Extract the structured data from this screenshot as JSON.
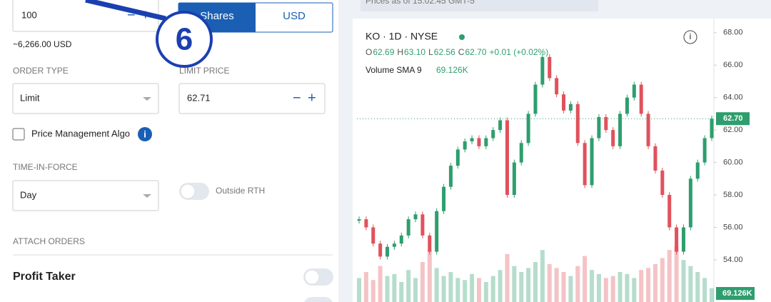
{
  "order_form": {
    "quantity": "100",
    "estimate": "~6,266.00 USD",
    "unit_options": [
      "Shares",
      "USD"
    ],
    "order_type_label": "ORDER TYPE",
    "order_type": "Limit",
    "limit_price_label": "LIMIT PRICE",
    "limit_price": "62.71",
    "algo_label": "Price Management Algo",
    "tif_label": "TIME-IN-FORCE",
    "tif": "Day",
    "outside_rth_label": "Outside RTH",
    "attach_label": "ATTACH ORDERS",
    "profit_taker_label": "Profit Taker",
    "annotation": "6"
  },
  "prices_note": "Prices as of 15:02:45 GMT-5",
  "chart_data": {
    "type": "candlestick",
    "title": "KO · 1D · NYSE",
    "ohlc": [
      {
        "label": "O",
        "value": "62.69"
      },
      {
        "label": "H",
        "value": "63.10"
      },
      {
        "label": "L",
        "value": "62.56"
      },
      {
        "label": "C",
        "value": "62.70"
      }
    ],
    "change": "+0.01 (+0.02%)",
    "volume_label": "Volume SMA 9",
    "volume_value": "69.126K",
    "close": [
      56.5,
      56,
      55,
      54.2,
      54.8,
      55,
      55.5,
      56.5,
      56.8,
      55.5,
      54.5,
      57,
      58.5,
      59.8,
      60.8,
      61.3,
      61.5,
      61,
      61.5,
      62,
      62.6,
      58,
      60,
      61.2,
      63,
      64.8,
      66.5,
      65.2,
      64.2,
      63.2,
      63.6,
      61.2,
      58.6,
      61.5,
      62.8,
      62,
      61,
      63,
      64,
      64.8,
      63,
      61,
      59.5,
      58,
      56,
      54.5,
      56,
      59,
      60,
      61.5,
      62.7
    ],
    "volume": [
      120,
      150,
      110,
      180,
      130,
      140,
      100,
      160,
      120,
      200,
      260,
      170,
      130,
      150,
      120,
      110,
      140,
      120,
      100,
      130,
      160,
      240,
      180,
      150,
      170,
      200,
      260,
      190,
      170,
      150,
      130,
      180,
      230,
      160,
      140,
      120,
      130,
      150,
      140,
      120,
      160,
      170,
      190,
      220,
      260,
      280,
      210,
      180,
      150,
      120,
      69.126
    ],
    "up_color": "#2e9e6e",
    "down_color": "#e0525c",
    "last_price": {
      "value": 62.7,
      "label": "62.70"
    },
    "ylim": [
      51.4,
      68.87
    ],
    "yticks": [
      {
        "value": 54,
        "label": "54.00"
      },
      {
        "value": 56,
        "label": "56.00"
      },
      {
        "value": 58,
        "label": "58.00"
      },
      {
        "value": 60,
        "label": "60.00"
      },
      {
        "value": 62,
        "label": "62.00"
      },
      {
        "value": 64,
        "label": "64.00"
      },
      {
        "value": 66,
        "label": "66.00"
      },
      {
        "value": 68,
        "label": "68.00"
      }
    ]
  }
}
